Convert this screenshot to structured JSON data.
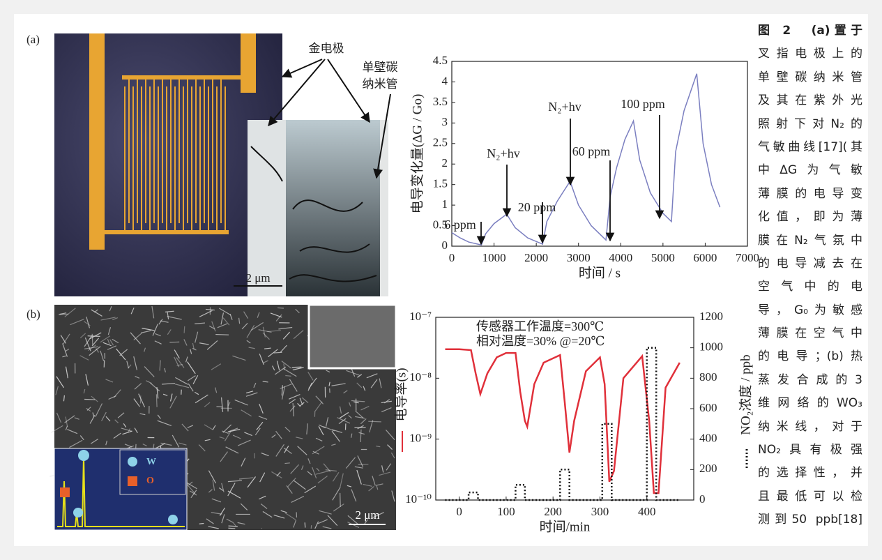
{
  "figure": {
    "panel_labels": [
      "(a)",
      "(b)"
    ],
    "electrode_label": "金电极",
    "nanotube_label": [
      "单壁碳",
      "纳米管"
    ],
    "scale_bars": [
      "2 μm",
      "2 μm"
    ],
    "eds_legend": [
      "W",
      "O"
    ],
    "caption": [
      "图 2　(a)置于",
      "叉指电极上的",
      "单壁碳纳米管",
      "及其在紫外光",
      "照射下对N₂的",
      "气敏曲线[17](其",
      "中ΔG为气敏",
      "薄膜的电导变",
      "化值，即为薄",
      "膜在N₂气氛中",
      "的电导减去在",
      "空气中的电",
      "导，G₀为敏感",
      "薄膜在空气中",
      "的电导；(b)热",
      "蒸发合成的3",
      "维网络的WO₃",
      "纳米线，对于",
      "NO₂具有极强",
      "的选择性，并",
      "且最低可以检",
      "测到50 ppb[18]"
    ]
  },
  "chart_data": [
    {
      "type": "line",
      "x_label": "时间 / s",
      "y_label": "电导变化量(ΔG / Go)",
      "xlim": [
        0,
        7000
      ],
      "xticks": [
        0,
        1000,
        2000,
        3000,
        4000,
        5000,
        6000,
        7000
      ],
      "ylim": [
        0,
        4.5
      ],
      "yticks": [
        0,
        0.5,
        1,
        1.5,
        2,
        2.5,
        3,
        3.5,
        4,
        4.5
      ],
      "annotations": [
        "6 ppm",
        "N₂+hv",
        "20 ppm",
        "N₂+hv",
        "60 ppm",
        "100 ppm"
      ],
      "series": [
        {
          "color": "#7b7fc0",
          "x": [
            0,
            200,
            400,
            700,
            800,
            1000,
            1300,
            1500,
            1800,
            2150,
            2250,
            2500,
            2800,
            3000,
            3300,
            3650,
            3750,
            3900,
            4100,
            4300,
            4450,
            4700,
            5000,
            5200,
            5300,
            5500,
            5800,
            5950,
            6150,
            6350
          ],
          "values": [
            0.33,
            0.2,
            0.1,
            0.03,
            0.3,
            0.55,
            0.78,
            0.45,
            0.2,
            0.05,
            0.6,
            1.1,
            1.58,
            1.0,
            0.5,
            0.15,
            1.2,
            1.9,
            2.6,
            3.05,
            2.1,
            1.3,
            0.8,
            0.6,
            2.3,
            3.3,
            4.2,
            2.5,
            1.5,
            0.95
          ]
        }
      ]
    },
    {
      "type": "line",
      "x_label": "时间/min",
      "y_label": "电导率(s)",
      "y2_label": "NO₂浓度 / ppb",
      "xlim": [
        -50,
        500
      ],
      "xticks": [
        0,
        100,
        200,
        300,
        400
      ],
      "ylog": true,
      "ylim": [
        1e-10,
        1e-07
      ],
      "yticks": [
        {
          "value": 1e-10,
          "label": "10⁻¹⁰"
        },
        {
          "value": 1e-09,
          "label": "10⁻⁹"
        },
        {
          "value": 1e-08,
          "label": "10⁻⁸"
        },
        {
          "value": 1e-07,
          "label": "10⁻⁷"
        }
      ],
      "y2lim": [
        0,
        1200
      ],
      "y2ticks": [
        0,
        200,
        400,
        600,
        800,
        1000,
        1200
      ],
      "annotations": [
        "传感器工作温度=300℃",
        "相对温度=30% @=20℃"
      ],
      "series": [
        {
          "color": "#e0303a",
          "style": "solid",
          "x": [
            -30,
            0,
            25,
            35,
            45,
            60,
            80,
            100,
            120,
            130,
            140,
            145,
            160,
            180,
            215,
            225,
            235,
            245,
            270,
            300,
            310,
            320,
            330,
            350,
            390,
            405,
            415,
            425,
            440,
            470
          ],
          "values": [
            3e-08,
            3e-08,
            2.9e-08,
            1.2e-08,
            5.5e-09,
            1.2e-08,
            2.2e-08,
            2.6e-08,
            2.6e-08,
            6e-09,
            2e-09,
            1.6e-09,
            8e-09,
            1.8e-08,
            2.4e-08,
            4e-09,
            6e-10,
            2e-09,
            1.3e-08,
            2.2e-08,
            8e-09,
            2e-10,
            3e-10,
            1e-08,
            2.3e-08,
            2e-09,
            1.3e-10,
            1.3e-10,
            7e-09,
            1.8e-08
          ]
        },
        {
          "color": "#111111",
          "style": "dotted",
          "axis": "y2",
          "x": [
            -30,
            20,
            20,
            40,
            40,
            120,
            120,
            140,
            140,
            215,
            215,
            235,
            235,
            305,
            305,
            325,
            325,
            400,
            400,
            420,
            420,
            470
          ],
          "values": [
            0,
            0,
            50,
            50,
            0,
            0,
            100,
            100,
            0,
            0,
            200,
            200,
            0,
            0,
            500,
            500,
            0,
            0,
            1000,
            1000,
            0,
            0
          ]
        }
      ]
    }
  ]
}
